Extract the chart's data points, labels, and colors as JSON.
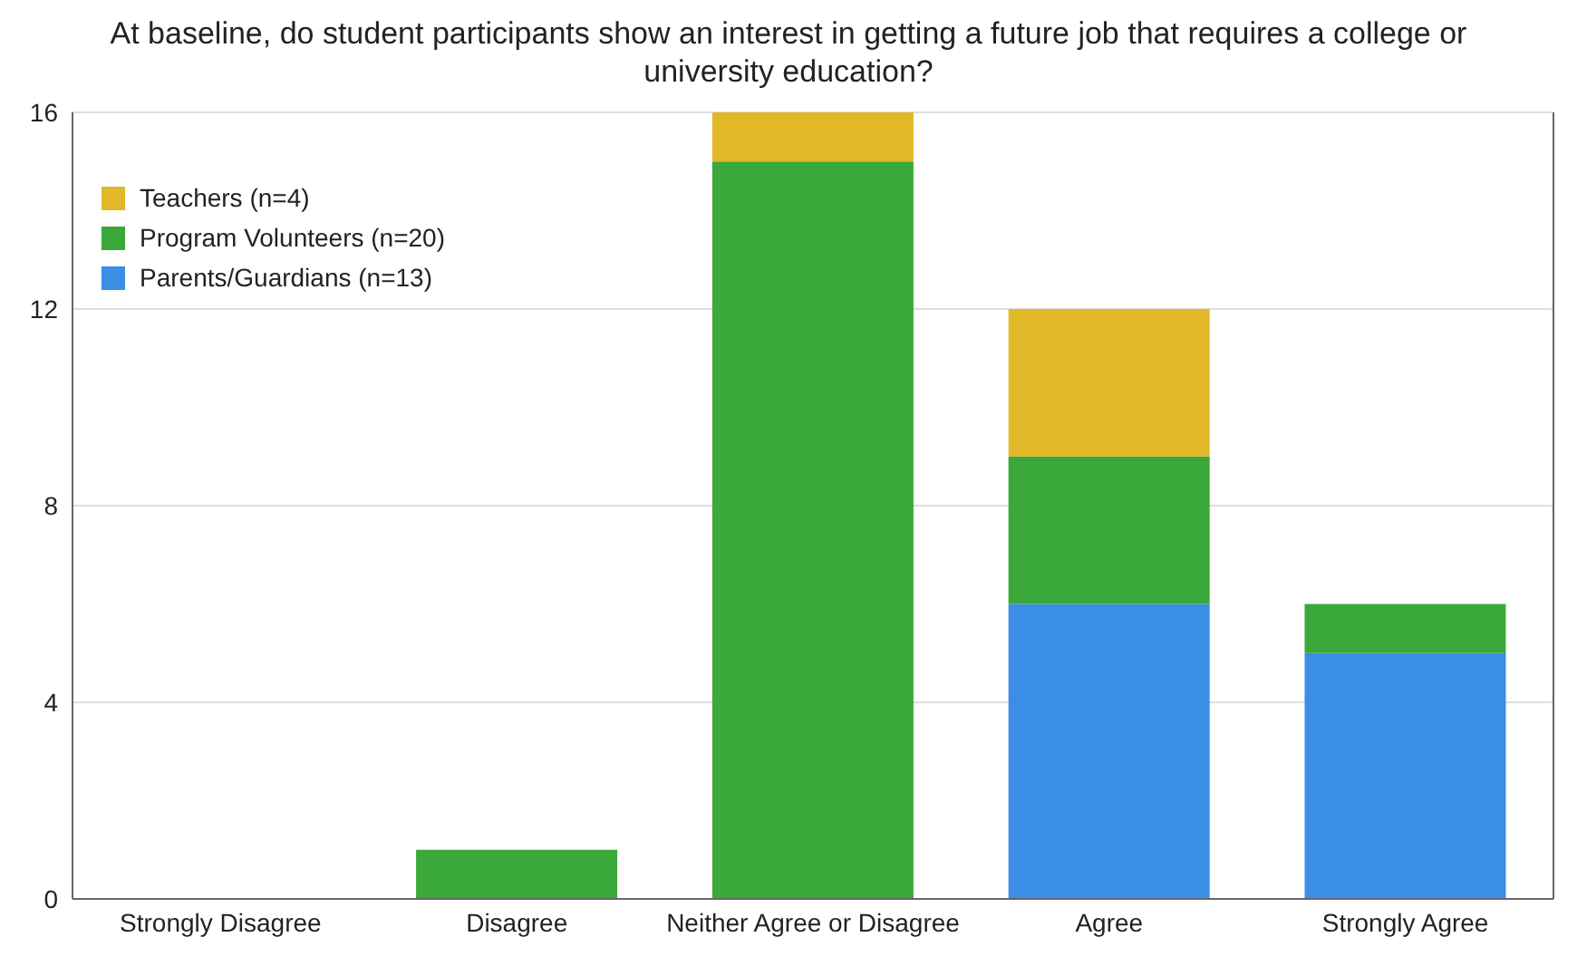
{
  "chart_data": {
    "type": "bar",
    "title": "At baseline, do student participants show an interest in getting a future job that requires a college or university education?",
    "categories": [
      "Strongly Disagree",
      "Disagree",
      "Neither Agree or Disagree",
      "Agree",
      "Strongly Agree"
    ],
    "series": [
      {
        "name": "Parents/Guardians  (n=13)",
        "color": "#3a8ee6",
        "values": [
          0,
          0,
          0,
          6,
          5
        ]
      },
      {
        "name": "Program Volunteers (n=20)",
        "color": "#3aa83a",
        "values": [
          0,
          1,
          15,
          3,
          1
        ]
      },
      {
        "name": "Teachers (n=4)",
        "color": "#e0b828",
        "values": [
          0,
          0,
          1,
          3,
          0
        ]
      }
    ],
    "stacked": true,
    "ylim": [
      0,
      16
    ],
    "yticks": [
      0,
      4,
      8,
      12,
      16
    ],
    "grid": "y",
    "legend": "top left"
  }
}
